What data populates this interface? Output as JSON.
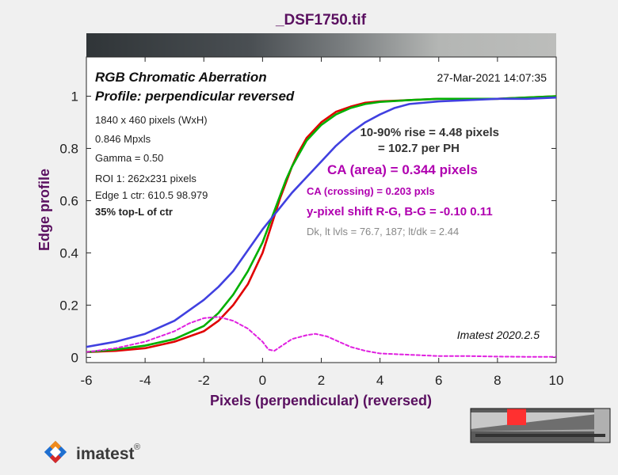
{
  "figure": {
    "file_title": "_DSF1750.tif",
    "timestamp": "27-Mar-2021 14:07:35",
    "version": "Imatest 2020.2.5",
    "logo": "imatest",
    "logo_mark": "®"
  },
  "info": {
    "plot_title": "RGB Chromatic Aberration",
    "subtitle": "Profile: perpendicular reversed",
    "dimensions": "1840 x 460 pixels (WxH)",
    "mpxls": "0.846 Mpxls",
    "gamma": "Gamma = 0.50",
    "roi": "ROI 1: 262x231 pixels",
    "edge": "Edge 1 ctr: 610.5  98.979",
    "position": "35% top-L of ctr"
  },
  "results": {
    "rise": "10-90% rise = 4.48 pixels",
    "per_ph": "= 102.7 per PH",
    "ca_area": "CA (area) = 0.344 pixels",
    "ca_crossing": "CA (crossing) = 0.203 pxls",
    "y_shift": "y-pixel shift R-G, B-G = -0.10  0.11",
    "levels": "Dk, lt lvls = 76.7, 187;  lt/dk = 2.44"
  },
  "chart_data": {
    "type": "line",
    "xlabel": "Pixels (perpendicular)   (reversed)",
    "ylabel": "Edge profile",
    "xlim": [
      -6,
      10
    ],
    "ylim": [
      -0.02,
      1.15
    ],
    "xticks": [
      -6,
      -4,
      -2,
      0,
      2,
      4,
      6,
      8,
      10
    ],
    "yticks": [
      0,
      0.2,
      0.4,
      0.6,
      0.8,
      1
    ],
    "ytick_labels": [
      "0",
      "0.2",
      "0.4",
      "0.6",
      "0.8",
      "1"
    ],
    "grid": false,
    "series": [
      {
        "color": "#e00000",
        "x": [
          -6,
          -5,
          -4,
          -3,
          -2,
          -1.5,
          -1,
          -0.5,
          0,
          0.2,
          0.4,
          0.6,
          0.8,
          1,
          1.2,
          1.5,
          2,
          2.5,
          3,
          3.5,
          4,
          5,
          6,
          7,
          8,
          9,
          10
        ],
        "y": [
          0.02,
          0.025,
          0.035,
          0.06,
          0.1,
          0.14,
          0.2,
          0.28,
          0.4,
          0.47,
          0.54,
          0.61,
          0.67,
          0.73,
          0.78,
          0.84,
          0.9,
          0.94,
          0.96,
          0.975,
          0.98,
          0.985,
          0.99,
          0.99,
          0.99,
          0.995,
          1.0
        ]
      },
      {
        "color": "#00b000",
        "x": [
          -6,
          -5,
          -4,
          -3,
          -2,
          -1.5,
          -1,
          -0.5,
          0,
          0.2,
          0.4,
          0.6,
          0.8,
          1,
          1.2,
          1.5,
          2,
          2.5,
          3,
          3.5,
          4,
          5,
          6,
          7,
          8,
          9,
          10
        ],
        "y": [
          0.02,
          0.03,
          0.045,
          0.07,
          0.12,
          0.17,
          0.24,
          0.33,
          0.44,
          0.5,
          0.56,
          0.62,
          0.68,
          0.73,
          0.77,
          0.83,
          0.89,
          0.93,
          0.955,
          0.97,
          0.978,
          0.985,
          0.99,
          0.99,
          0.99,
          0.995,
          1.0
        ]
      },
      {
        "color": "#4040e0",
        "x": [
          -6,
          -5,
          -4,
          -3,
          -2,
          -1.5,
          -1,
          -0.5,
          0,
          0.5,
          1,
          1.5,
          2,
          2.5,
          3,
          3.5,
          4,
          4.5,
          5,
          6,
          7,
          8,
          9,
          10
        ],
        "y": [
          0.04,
          0.06,
          0.09,
          0.14,
          0.22,
          0.27,
          0.33,
          0.41,
          0.49,
          0.56,
          0.63,
          0.69,
          0.75,
          0.81,
          0.86,
          0.9,
          0.93,
          0.955,
          0.97,
          0.98,
          0.985,
          0.99,
          0.99,
          0.995
        ]
      },
      {
        "color": "#e020e0",
        "dashed": true,
        "x": [
          -6,
          -5,
          -4,
          -3,
          -2.5,
          -2,
          -1.5,
          -1,
          -0.5,
          0,
          0.2,
          0.4,
          0.6,
          1,
          1.5,
          1.8,
          2.2,
          2.6,
          3,
          3.5,
          4,
          5,
          6,
          7,
          8,
          9,
          10
        ],
        "y": [
          0.02,
          0.035,
          0.06,
          0.1,
          0.13,
          0.15,
          0.155,
          0.14,
          0.11,
          0.06,
          0.03,
          0.025,
          0.04,
          0.07,
          0.085,
          0.09,
          0.08,
          0.06,
          0.04,
          0.025,
          0.015,
          0.01,
          0.005,
          0.005,
          0.003,
          0.002,
          0.002
        ]
      }
    ]
  }
}
